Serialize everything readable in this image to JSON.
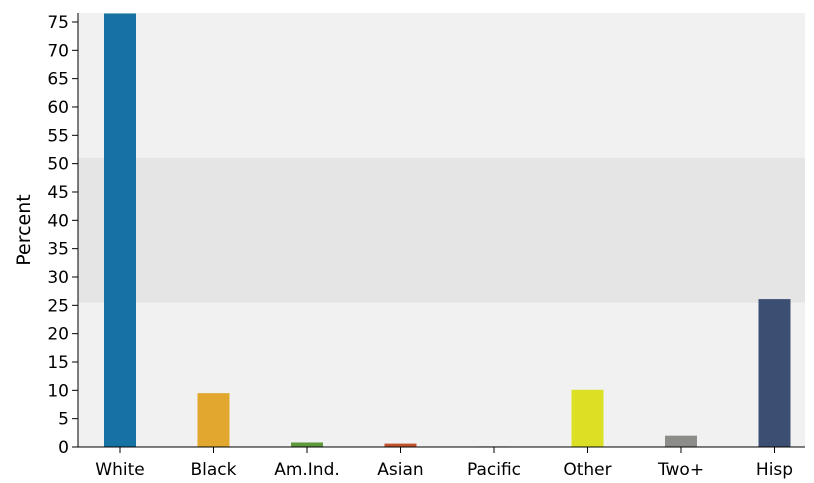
{
  "chart_data": {
    "type": "bar",
    "title": "",
    "xlabel": "",
    "ylabel": "Percent",
    "ylim": [
      0,
      76.5
    ],
    "yticks": [
      0,
      5,
      10,
      15,
      20,
      25,
      30,
      35,
      40,
      45,
      50,
      55,
      60,
      65,
      70,
      75
    ],
    "categories": [
      "White",
      "Black",
      "Am.Ind.",
      "Asian",
      "Pacific",
      "Other",
      "Two+",
      "Hisp"
    ],
    "values": [
      76.5,
      9.5,
      0.8,
      0.6,
      0.1,
      10.1,
      2.0,
      26.1
    ],
    "colors": [
      "#1572a3",
      "#e2a72e",
      "#5e9a3d",
      "#c0532c",
      "#7f62a6",
      "#dce024",
      "#8c8c88",
      "#3c4f73"
    ],
    "shaded_band": [
      25.5,
      51.0
    ],
    "background_color": "#f1f1f1",
    "band_color": "#e5e5e5",
    "grid": false
  }
}
